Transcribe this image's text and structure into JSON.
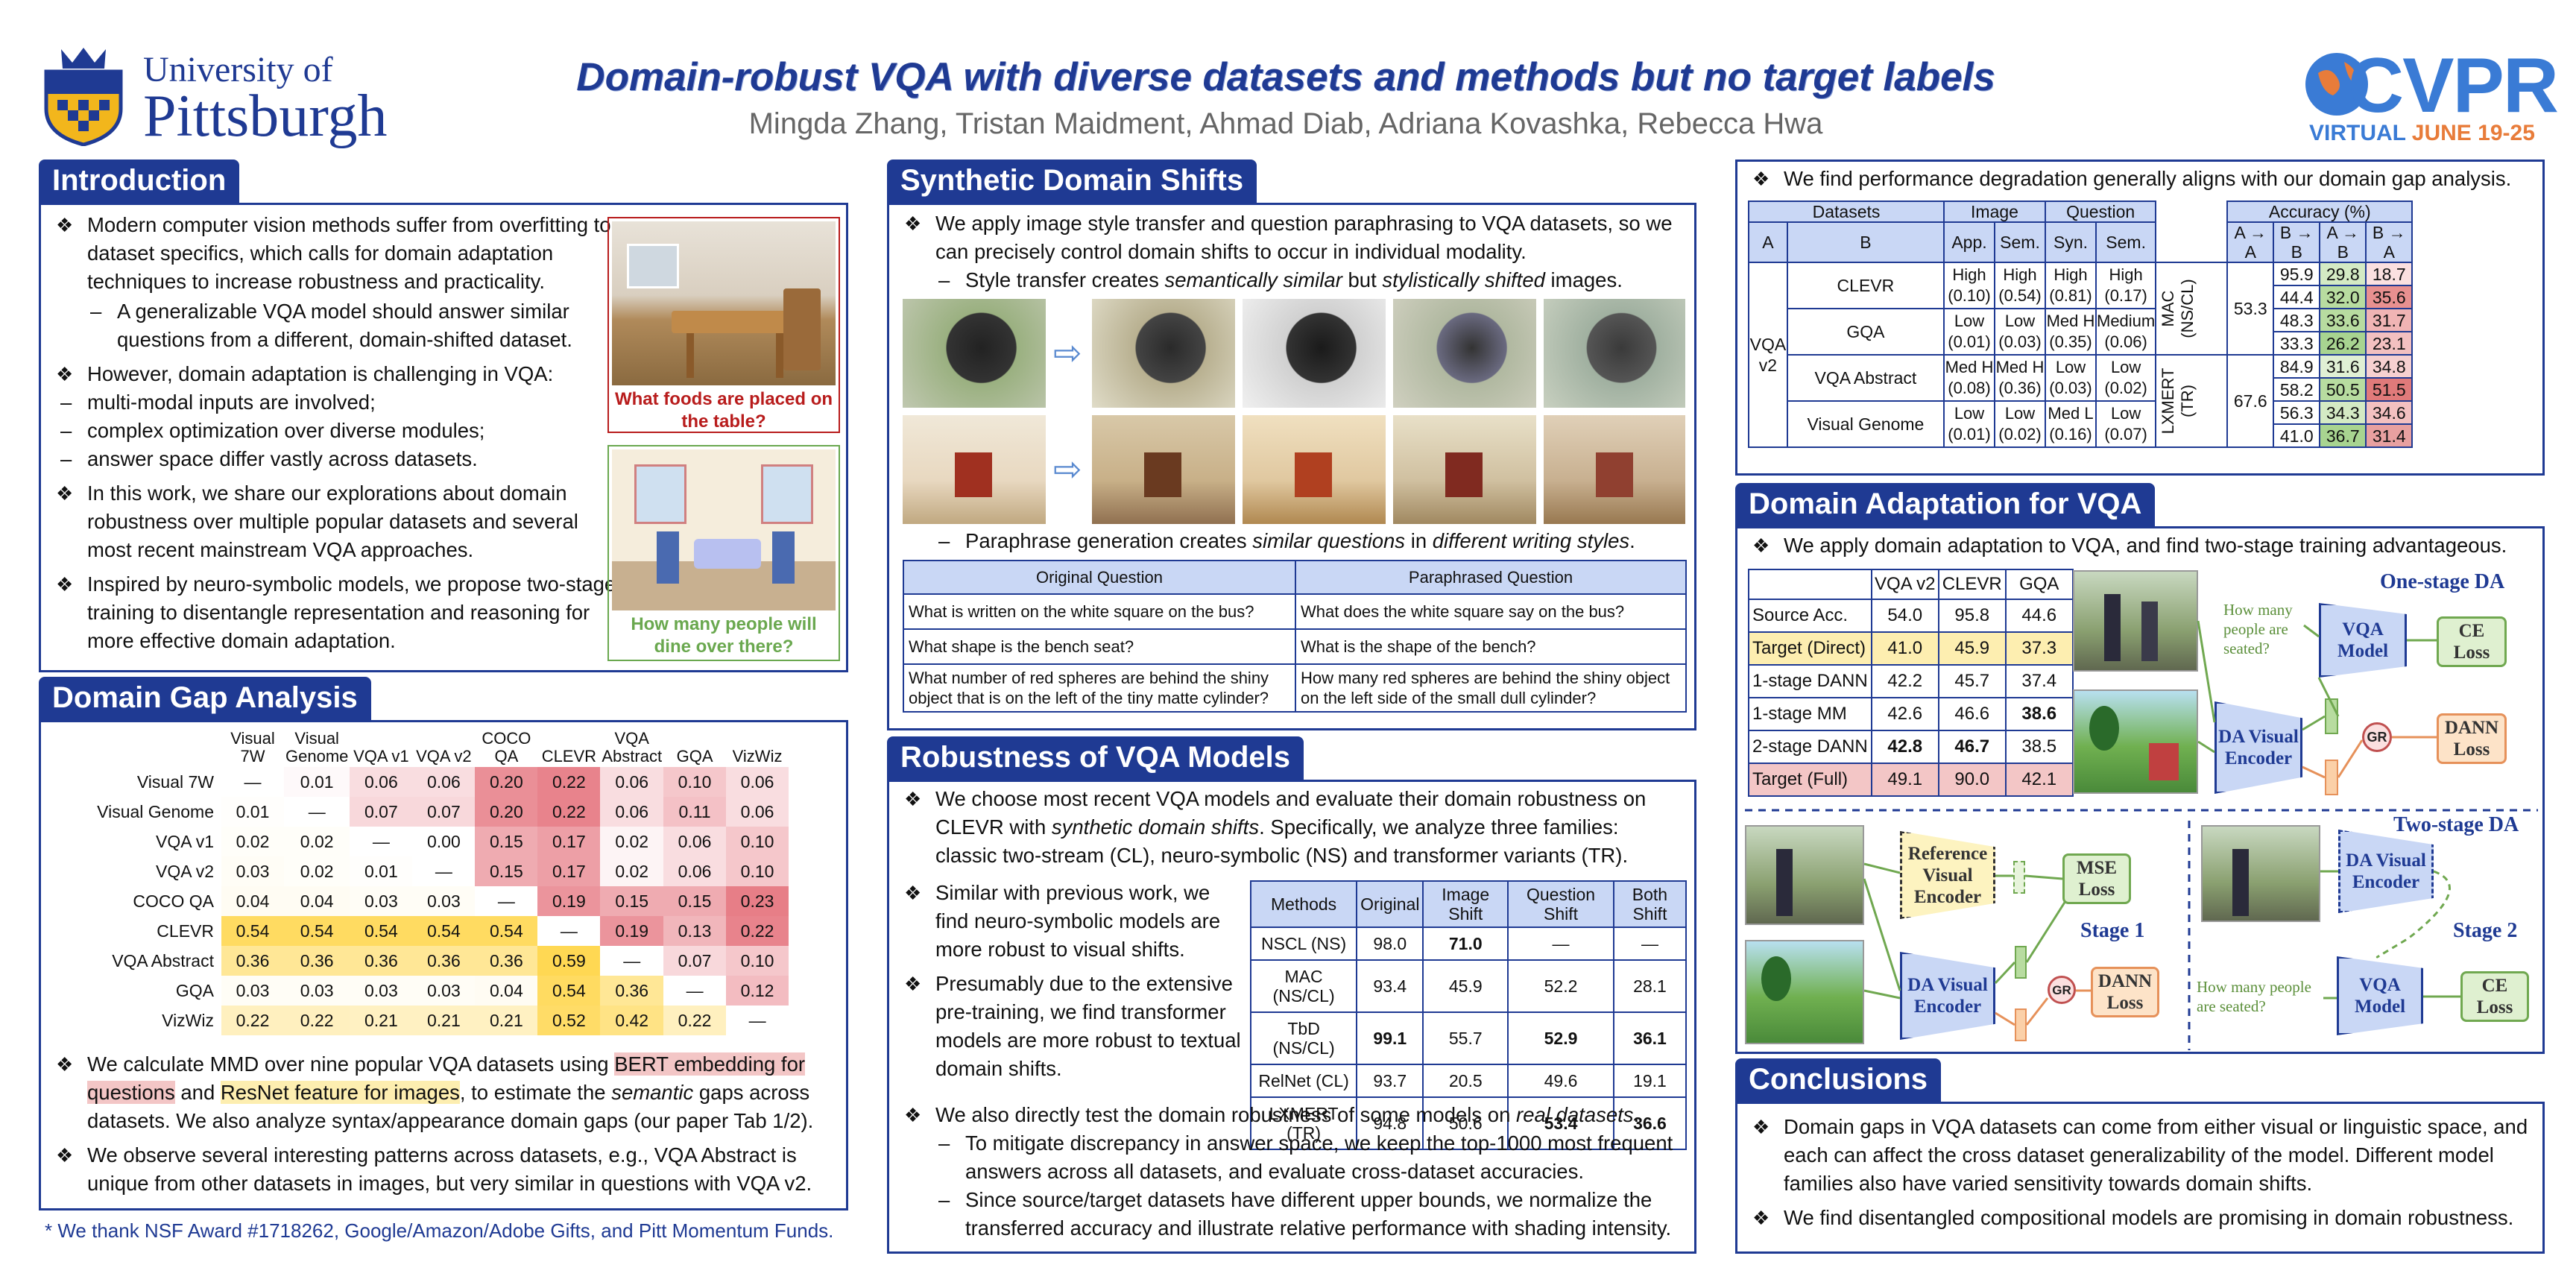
{
  "header": {
    "univ_line1": "University of",
    "univ_line2": "Pittsburgh",
    "title": "Domain-robust VQA with diverse datasets and methods but no target labels",
    "authors": "Mingda Zhang, Tristan Maidment, Ahmad Diab, Adriana Kovashka, Rebecca Hwa",
    "cvpr_logo": "CVPR",
    "cvpr_virtual": "VIRTUAL",
    "cvpr_dates": "JUNE 19-25"
  },
  "intro": {
    "title": "Introduction",
    "b1": "Modern computer vision methods suffer from overfitting to dataset specifics, which calls for domain adaptation techniques to increase robustness and practicality.",
    "b1s1": "A generalizable VQA model should answer similar questions from a different, domain-shifted dataset.",
    "b2": "However, domain adaptation is challenging in VQA:",
    "b2s1": "multi-modal inputs are involved;",
    "b2s2": "complex optimization over diverse modules;",
    "b2s3": "answer space differ vastly across datasets.",
    "b3": "In this work, we share our explorations about domain robustness over multiple popular datasets and several most recent mainstream VQA approaches.",
    "b4": "Inspired by neuro-symbolic models, we propose two-stage training to disentangle representation and reasoning for more effective domain adaptation.",
    "cap1": "What foods are placed on the table?",
    "cap2": "How many people will dine over there?"
  },
  "gap": {
    "title": "Domain Gap Analysis",
    "cols": [
      "Visual 7W",
      "Visual Genome",
      "VQA v1",
      "VQA v2",
      "COCO QA",
      "CLEVR",
      "VQA Abstract",
      "GQA",
      "VizWiz"
    ],
    "rows": [
      {
        "name": "Visual 7W",
        "vals": [
          "—",
          "0.01",
          "0.06",
          "0.06",
          "0.20",
          "0.22",
          "0.06",
          "0.10",
          "0.06"
        ]
      },
      {
        "name": "Visual Genome",
        "vals": [
          "0.01",
          "—",
          "0.07",
          "0.07",
          "0.20",
          "0.22",
          "0.06",
          "0.11",
          "0.06"
        ]
      },
      {
        "name": "VQA v1",
        "vals": [
          "0.02",
          "0.02",
          "—",
          "0.00",
          "0.15",
          "0.17",
          "0.02",
          "0.06",
          "0.10"
        ]
      },
      {
        "name": "VQA v2",
        "vals": [
          "0.03",
          "0.02",
          "0.01",
          "—",
          "0.15",
          "0.17",
          "0.02",
          "0.06",
          "0.10"
        ]
      },
      {
        "name": "COCO QA",
        "vals": [
          "0.04",
          "0.04",
          "0.03",
          "0.03",
          "—",
          "0.19",
          "0.15",
          "0.15",
          "0.23"
        ]
      },
      {
        "name": "CLEVR",
        "vals": [
          "0.54",
          "0.54",
          "0.54",
          "0.54",
          "0.54",
          "—",
          "0.19",
          "0.13",
          "0.22"
        ]
      },
      {
        "name": "VQA Abstract",
        "vals": [
          "0.36",
          "0.36",
          "0.36",
          "0.36",
          "0.36",
          "0.59",
          "—",
          "0.07",
          "0.10"
        ]
      },
      {
        "name": "GQA",
        "vals": [
          "0.03",
          "0.03",
          "0.03",
          "0.03",
          "0.04",
          "0.54",
          "0.36",
          "—",
          "0.12"
        ]
      },
      {
        "name": "VizWiz",
        "vals": [
          "0.22",
          "0.22",
          "0.21",
          "0.21",
          "0.21",
          "0.52",
          "0.42",
          "0.22",
          "—"
        ]
      }
    ],
    "b1_pre": "We calculate MMD over nine popular VQA datasets using ",
    "b1_hl1": "BERT embedding for questions",
    "b1_mid": " and ",
    "b1_hl2": "ResNet feature for images",
    "b1_mid2": ", to estimate the ",
    "b1_em": "semantic",
    "b1_post": " gaps across datasets. We also analyze syntax/appearance domain gaps (our paper Tab 1/2).",
    "b2": "We observe several interesting patterns across datasets, e.g., VQA Abstract is unique from other datasets in images, but very similar in questions with VQA v2.",
    "thanks": "* We thank NSF Award #1718262, Google/Amazon/Adobe Gifts, and Pitt Momentum Funds."
  },
  "synth": {
    "title": "Synthetic Domain Shifts",
    "b1": "We apply image style transfer and question paraphrasing to VQA datasets, so we can precisely control domain shifts to occur in individual modality.",
    "s1_pre": "Style transfer creates ",
    "s1_em1": "semantically similar",
    "s1_mid": " but ",
    "s1_em2": "stylistically shifted",
    "s1_post": " images.",
    "s2_pre": "Paraphrase generation creates ",
    "s2_em1": "similar questions",
    "s2_mid": " in ",
    "s2_em2": "different writing styles",
    "s2_post": ".",
    "th_orig": "Original Question",
    "th_para": "Paraphrased Question",
    "rows": [
      {
        "o": "What is written on the white square on the bus?",
        "p": "What does the white square say on the bus?"
      },
      {
        "o": "What shape is the bench seat?",
        "p": "What is the shape of the bench?"
      },
      {
        "o": "What number of red spheres are behind the shiny object that is on the left of the tiny matte cylinder?",
        "p": "How many red spheres are behind the shiny object on the left side of the small dull cylinder?"
      }
    ]
  },
  "robust": {
    "title": "Robustness of VQA Models",
    "b1_pre": "We choose most recent VQA models and evaluate their domain robustness on CLEVR with ",
    "b1_em": "synthetic domain shifts",
    "b1_post": ". Specifically, we analyze three families: classic two-stream (CL), neuro-symbolic (NS) and transformer variants (TR).",
    "b2": "Similar with previous work, we find neuro-symbolic models are more robust to visual shifts.",
    "b3": "Presumably due to the extensive pre-training, we find transformer models are more robust to textual domain shifts.",
    "b4_pre": "We also directly test the domain robustness of some models on ",
    "b4_em": "real datasets",
    "b4_post": ".",
    "s1": "To mitigate discrepancy in answer space, we keep the top-1000 most frequent answers across all datasets, and evaluate cross-dataset accuracies.",
    "s2": "Since source/target datasets have different upper bounds, we normalize the transferred accuracy and illustrate relative performance with shading intensity.",
    "headers": [
      "Methods",
      "Original",
      "Image Shift",
      "Question Shift",
      "Both Shift"
    ],
    "rows": [
      {
        "m": "NSCL (NS)",
        "v": [
          "98.0",
          "71.0",
          "—",
          "—"
        ],
        "b": [
          false,
          true,
          false,
          false
        ]
      },
      {
        "m": "MAC (NS/CL)",
        "v": [
          "93.4",
          "45.9",
          "52.2",
          "28.1"
        ],
        "b": [
          false,
          false,
          false,
          false
        ]
      },
      {
        "m": "TbD (NS/CL)",
        "v": [
          "99.1",
          "55.7",
          "52.9",
          "36.1"
        ],
        "b": [
          true,
          false,
          true,
          true
        ]
      },
      {
        "m": "RelNet (CL)",
        "v": [
          "93.7",
          "20.5",
          "49.6",
          "19.1"
        ],
        "b": [
          false,
          false,
          false,
          false
        ]
      },
      {
        "m": "LXMERT (TR)",
        "v": [
          "94.8",
          "50.6",
          "53.4",
          "36.6"
        ],
        "b": [
          false,
          false,
          true,
          true
        ]
      }
    ]
  },
  "degrad": {
    "b1": "We find performance degradation generally aligns with our domain gap analysis.",
    "h_datasets": "Datasets",
    "h_image": "Image",
    "h_question": "Question",
    "h_acc": "Accuracy (%)",
    "h_a": "A",
    "h_b": "B",
    "h_app": "App.",
    "h_sem": "Sem.",
    "h_syn": "Syn.",
    "h_sem2": "Sem.",
    "h_aa": "A → A",
    "h_bb": "B → B",
    "h_ab": "A → B",
    "h_ba": "B → A",
    "a_label": "VQA v2",
    "rows": [
      {
        "b": "CLEVR",
        "app": "High (0.10)",
        "sem": "High (0.54)",
        "syn": "High (0.81)",
        "qsem": "High (0.17)"
      },
      {
        "b": "GQA",
        "app": "Low (0.01)",
        "sem": "Low (0.03)",
        "syn": "Med H (0.35)",
        "qsem": "Medium (0.06)"
      },
      {
        "b": "VQA Abstract",
        "app": "Med H (0.08)",
        "sem": "Med H (0.36)",
        "syn": "Low (0.03)",
        "qsem": "Low (0.02)"
      },
      {
        "b": "Visual Genome",
        "app": "Low (0.01)",
        "sem": "Low (0.02)",
        "syn": "Med L (0.16)",
        "qsem": "Low (0.07)"
      }
    ],
    "models": [
      {
        "name": "MAC (NS/CL)",
        "aa": "53.3",
        "rows": [
          [
            "95.9",
            "29.8",
            "18.7"
          ],
          [
            "44.4",
            "32.0",
            "35.6"
          ],
          [
            "48.3",
            "33.6",
            "31.7"
          ],
          [
            "33.3",
            "26.2",
            "23.1"
          ]
        ]
      },
      {
        "name": "LXMERT (TR)",
        "aa": "67.6",
        "rows": [
          [
            "84.9",
            "31.6",
            "34.8"
          ],
          [
            "58.2",
            "50.5",
            "51.5"
          ],
          [
            "56.3",
            "34.3",
            "34.6"
          ],
          [
            "41.0",
            "36.7",
            "31.4"
          ]
        ]
      }
    ]
  },
  "da": {
    "title": "Domain Adaptation for VQA",
    "b1": "We apply domain adaptation to VQA, and find two-stage training advantageous.",
    "cols": [
      "VQA v2",
      "CLEVR",
      "GQA"
    ],
    "rows": [
      {
        "n": "Source Acc.",
        "v": [
          "54.0",
          "95.8",
          "44.6"
        ],
        "b": [
          false,
          false,
          false
        ],
        "c": "none"
      },
      {
        "n": "Target (Direct)",
        "v": [
          "41.0",
          "45.9",
          "37.3"
        ],
        "b": [
          false,
          false,
          false
        ],
        "c": "yel"
      },
      {
        "n": "1-stage DANN",
        "v": [
          "42.2",
          "45.7",
          "37.4"
        ],
        "b": [
          false,
          false,
          false
        ],
        "c": "none"
      },
      {
        "n": "1-stage MM",
        "v": [
          "42.6",
          "46.6",
          "38.6"
        ],
        "b": [
          false,
          false,
          true
        ],
        "c": "none"
      },
      {
        "n": "2-stage DANN",
        "v": [
          "42.8",
          "46.7",
          "38.5"
        ],
        "b": [
          true,
          true,
          false
        ],
        "c": "none"
      },
      {
        "n": "Target (Full)",
        "v": [
          "49.1",
          "90.0",
          "42.1"
        ],
        "b": [
          false,
          false,
          false
        ],
        "c": "red"
      }
    ],
    "one_stage": "One-stage DA",
    "two_stage": "Two-stage DA",
    "stage1": "Stage 1",
    "stage2": "Stage 2",
    "q_seated": "How many people are seated?",
    "q_seated2": "How many people are seated?",
    "vqa_model": "VQA Model",
    "vqa_model2": "VQA Model",
    "ce_loss": "CE Loss",
    "ce_loss2": "CE Loss",
    "dann_loss": "DANN Loss",
    "dann_loss2": "DANN Loss",
    "mse_loss": "MSE Loss",
    "da_enc": "DA Visual Encoder",
    "da_enc2": "DA Visual Encoder",
    "da_enc3": "DA Visual Encoder",
    "ref_enc": "Reference Visual Encoder",
    "gr": "GR",
    "gr2": "GR"
  },
  "concl": {
    "title": "Conclusions",
    "b1": "Domain gaps in VQA datasets can come from either visual or linguistic space, and each can affect the cross dataset generalizability of the model. Different model families also have varied sensitivity towards domain shifts.",
    "b2": "We find disentangled compositional models are promising in domain robustness."
  }
}
